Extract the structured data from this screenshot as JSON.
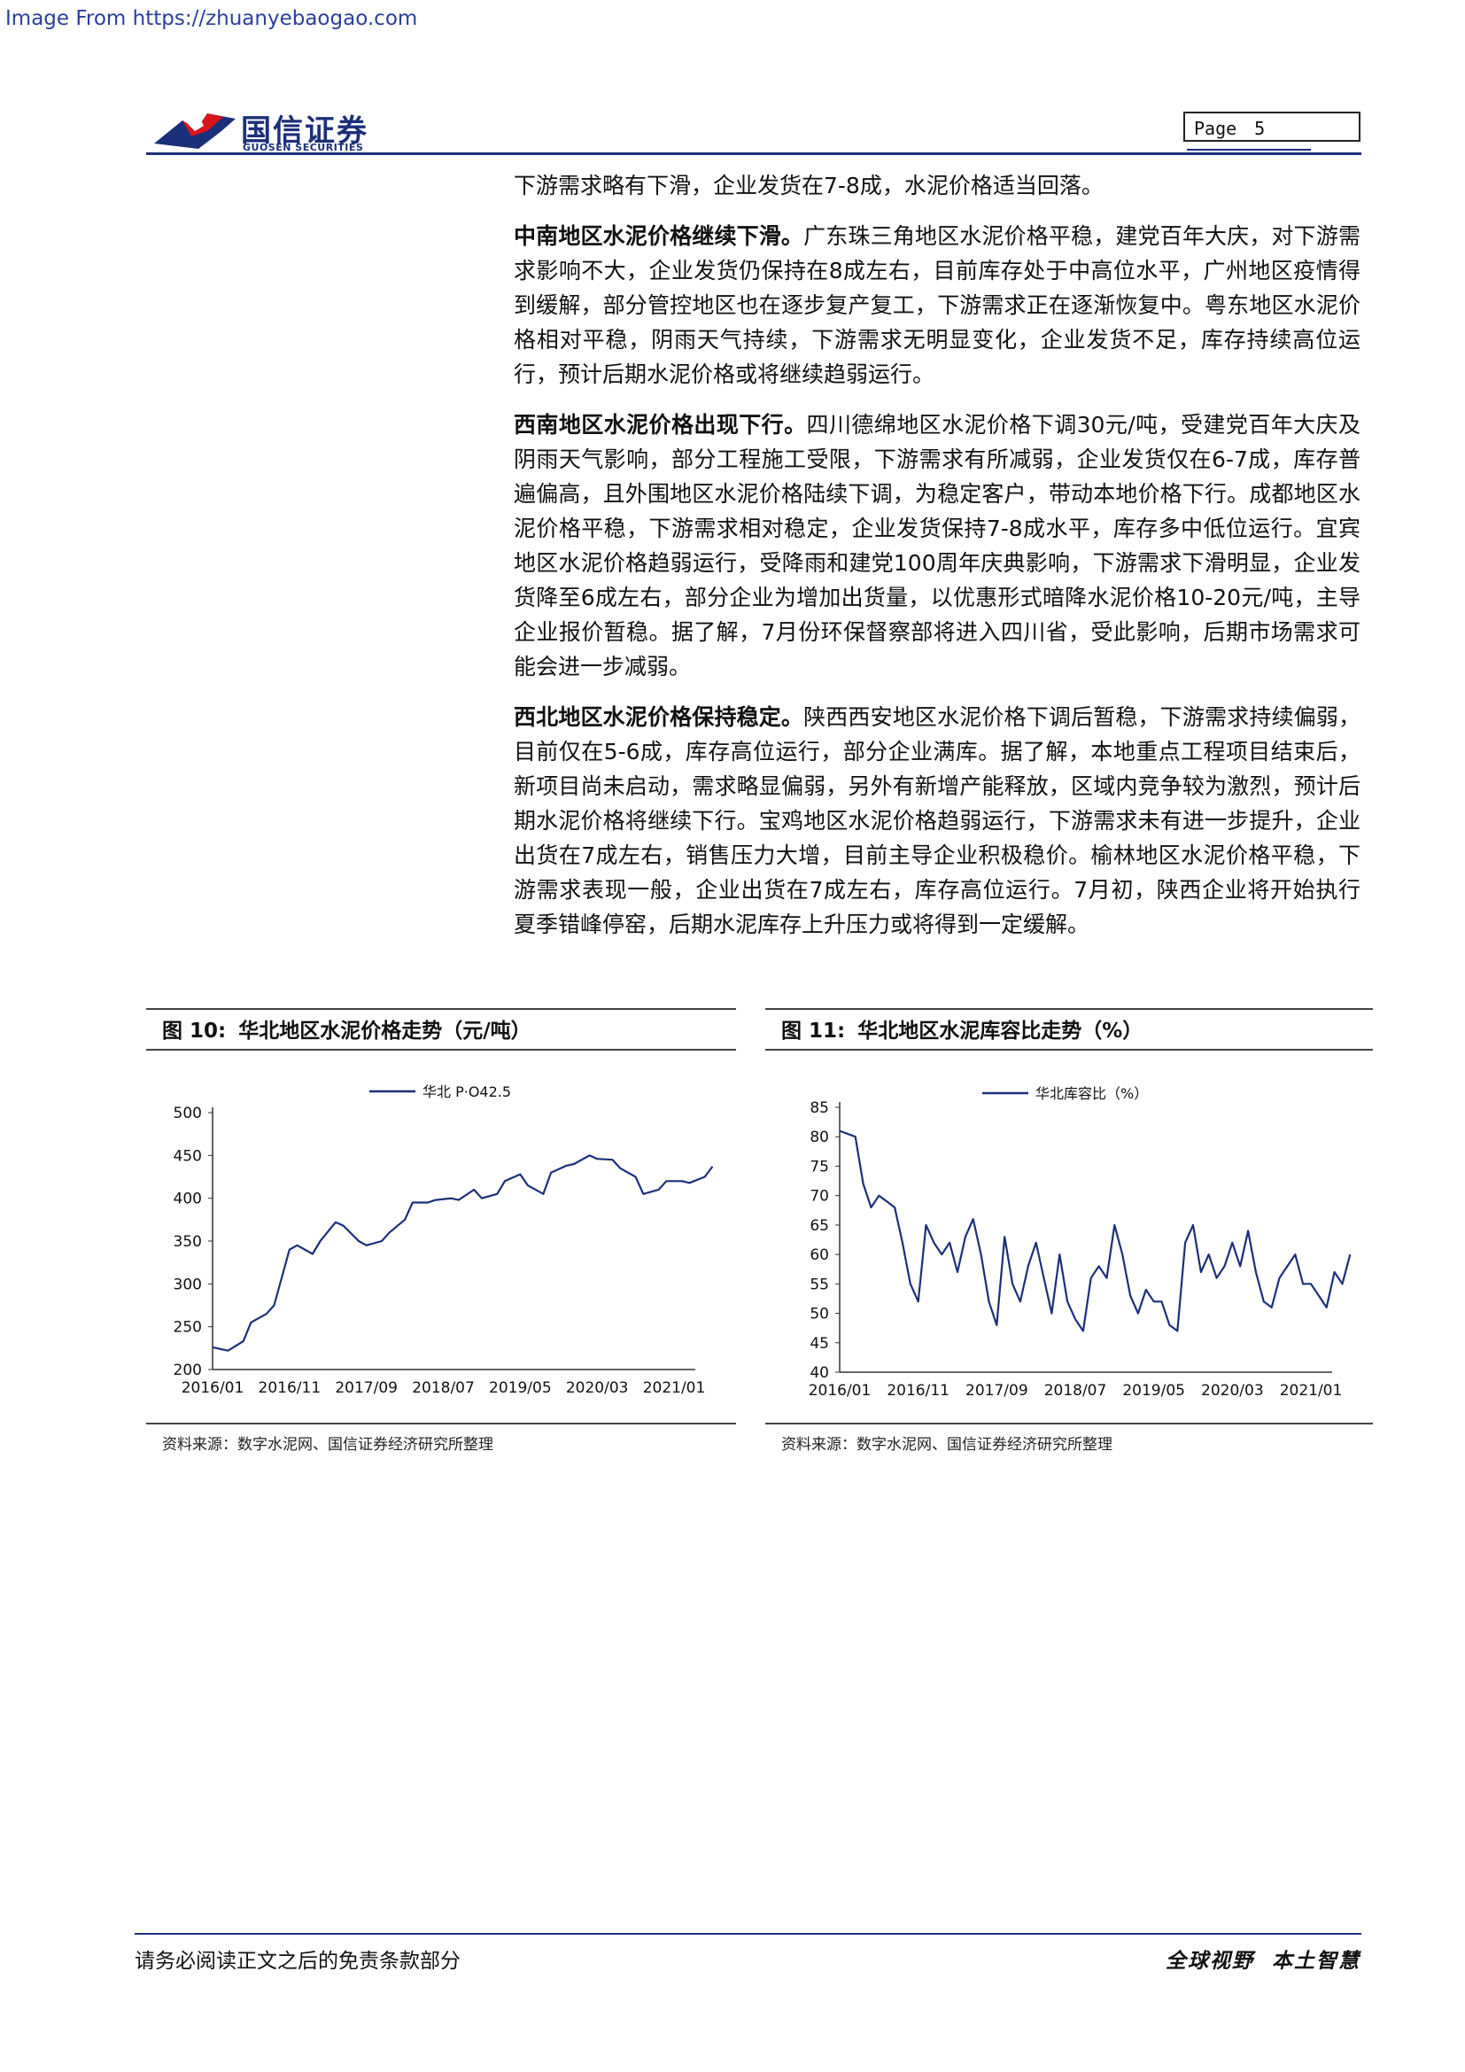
{
  "watermark": "Image From https://zhuanyebaogao.com",
  "header": {
    "brand_cn": "国信证券",
    "brand_en": "GUOSEN SECURITIES",
    "page_label": "Page",
    "page_number": "5",
    "colors": {
      "brand_blue": "#1b2f7a",
      "brand_red": "#d7151b"
    }
  },
  "paragraphs": [
    {
      "lead": "",
      "text": "下游需求略有下滑，企业发货在7-8成，水泥价格适当回落。"
    },
    {
      "lead": "中南地区水泥价格继续下滑。",
      "text": "广东珠三角地区水泥价格平稳，建党百年大庆，对下游需求影响不大，企业发货仍保持在8成左右，目前库存处于中高位水平，广州地区疫情得到缓解，部分管控地区也在逐步复产复工，下游需求正在逐渐恢复中。粤东地区水泥价格相对平稳，阴雨天气持续，下游需求无明显变化，企业发货不足，库存持续高位运行，预计后期水泥价格或将继续趋弱运行。"
    },
    {
      "lead": "西南地区水泥价格出现下行。",
      "text": "四川德绵地区水泥价格下调30元/吨，受建党百年大庆及阴雨天气影响，部分工程施工受限，下游需求有所减弱，企业发货仅在6-7成，库存普遍偏高，且外围地区水泥价格陆续下调，为稳定客户，带动本地价格下行。成都地区水泥价格平稳，下游需求相对稳定，企业发货保持7-8成水平，库存多中低位运行。宜宾地区水泥价格趋弱运行，受降雨和建党100周年庆典影响，下游需求下滑明显，企业发货降至6成左右，部分企业为增加出货量，以优惠形式暗降水泥价格10-20元/吨，主导企业报价暂稳。据了解，7月份环保督察部将进入四川省，受此影响，后期市场需求可能会进一步减弱。"
    },
    {
      "lead": "西北地区水泥价格保持稳定。",
      "text": "陕西西安地区水泥价格下调后暂稳，下游需求持续偏弱，目前仅在5-6成，库存高位运行，部分企业满库。据了解，本地重点工程项目结束后，新项目尚未启动，需求略显偏弱，另外有新增产能释放，区域内竞争较为激烈，预计后期水泥价格将继续下行。宝鸡地区水泥价格趋弱运行，下游需求未有进一步提升，企业出货在7成左右，销售压力大增，目前主导企业积极稳价。榆林地区水泥价格平稳，下游需求表现一般，企业出货在7成左右，库存高位运行。7月初，陕西企业将开始执行夏季错峰停窑，后期水泥库存上升压力或将得到一定缓解。"
    }
  ],
  "figures": [
    {
      "tag": "图 10:",
      "title": "华北地区水泥价格走势（元/吨）",
      "source": "资料来源：数字水泥网、国信证券经济研究所整理"
    },
    {
      "tag": "图 11:",
      "title": "华北地区水泥库容比走势（%）",
      "source": "资料来源：数字水泥网、国信证券经济研究所整理"
    }
  ],
  "chart_data": [
    {
      "type": "line",
      "series": [
        {
          "name": "华北 P·O42.5",
          "color": "#1b2f7a",
          "x": [
            "2016/01",
            "2016/03",
            "2016/05",
            "2016/06",
            "2016/08",
            "2016/09",
            "2016/11",
            "2016/12",
            "2017/02",
            "2017/03",
            "2017/05",
            "2017/06",
            "2017/08",
            "2017/09",
            "2017/11",
            "2017/12",
            "2018/02",
            "2018/03",
            "2018/05",
            "2018/06",
            "2018/08",
            "2018/09",
            "2018/11",
            "2018/12",
            "2019/02",
            "2019/03",
            "2019/05",
            "2019/06",
            "2019/08",
            "2019/09",
            "2019/11",
            "2019/12",
            "2020/02",
            "2020/03",
            "2020/05",
            "2020/06",
            "2020/08",
            "2020/09",
            "2020/11",
            "2020/12",
            "2021/02",
            "2021/03",
            "2021/05",
            "2021/06"
          ],
          "values": [
            226,
            222,
            233,
            255,
            265,
            275,
            340,
            345,
            335,
            350,
            372,
            368,
            350,
            345,
            350,
            360,
            375,
            395,
            395,
            398,
            400,
            398,
            410,
            400,
            405,
            420,
            428,
            415,
            405,
            430,
            438,
            440,
            450,
            446,
            445,
            435,
            425,
            405,
            410,
            420,
            420,
            418,
            425,
            437
          ]
        }
      ],
      "categories": [
        "2016/01",
        "2016/11",
        "2017/09",
        "2018/07",
        "2019/05",
        "2020/03",
        "2021/01"
      ],
      "yticks": [
        200,
        250,
        300,
        350,
        400,
        450,
        500
      ],
      "ylim": [
        200,
        500
      ],
      "legend": "top-center",
      "grid": false
    },
    {
      "type": "line",
      "series": [
        {
          "name": "华北库容比（%）",
          "color": "#1b2f7a",
          "x": [
            "2016/01",
            "2016/03",
            "2016/04",
            "2016/05",
            "2016/06",
            "2016/07",
            "2016/08",
            "2016/09",
            "2016/10",
            "2016/11",
            "2016/12",
            "2017/01",
            "2017/02",
            "2017/03",
            "2017/04",
            "2017/05",
            "2017/06",
            "2017/07",
            "2017/08",
            "2017/09",
            "2017/10",
            "2017/11",
            "2017/12",
            "2018/01",
            "2018/02",
            "2018/03",
            "2018/04",
            "2018/05",
            "2018/06",
            "2018/07",
            "2018/08",
            "2018/09",
            "2018/10",
            "2018/11",
            "2018/12",
            "2019/01",
            "2019/02",
            "2019/03",
            "2019/04",
            "2019/05",
            "2019/06",
            "2019/07",
            "2019/08",
            "2019/09",
            "2019/10",
            "2019/11",
            "2019/12",
            "2020/01",
            "2020/02",
            "2020/03",
            "2020/04",
            "2020/05",
            "2020/06",
            "2020/07",
            "2020/08",
            "2020/09",
            "2020/10",
            "2020/11",
            "2020/12",
            "2021/01",
            "2021/02",
            "2021/03",
            "2021/04",
            "2021/05",
            "2021/06"
          ],
          "values": [
            81,
            80,
            72,
            68,
            70,
            69,
            68,
            62,
            55,
            52,
            65,
            62,
            60,
            62,
            57,
            63,
            66,
            60,
            52,
            48,
            63,
            55,
            52,
            58,
            62,
            56,
            50,
            60,
            52,
            49,
            47,
            56,
            58,
            56,
            65,
            60,
            53,
            50,
            54,
            52,
            52,
            48,
            47,
            62,
            65,
            57,
            60,
            56,
            58,
            62,
            58,
            64,
            57,
            52,
            51,
            56,
            58,
            60,
            55,
            55,
            53,
            51,
            57,
            55,
            60
          ]
        }
      ],
      "categories": [
        "2016/01",
        "2016/11",
        "2017/09",
        "2018/07",
        "2019/05",
        "2020/03",
        "2021/01"
      ],
      "yticks": [
        40,
        45,
        50,
        55,
        60,
        65,
        70,
        75,
        80,
        85
      ],
      "ylim": [
        40,
        85
      ],
      "legend": "top-center",
      "grid": false
    }
  ],
  "footer": {
    "left": "请务必阅读正文之后的免责条款部分",
    "right_1": "全球视野",
    "right_2": "本土智慧"
  }
}
